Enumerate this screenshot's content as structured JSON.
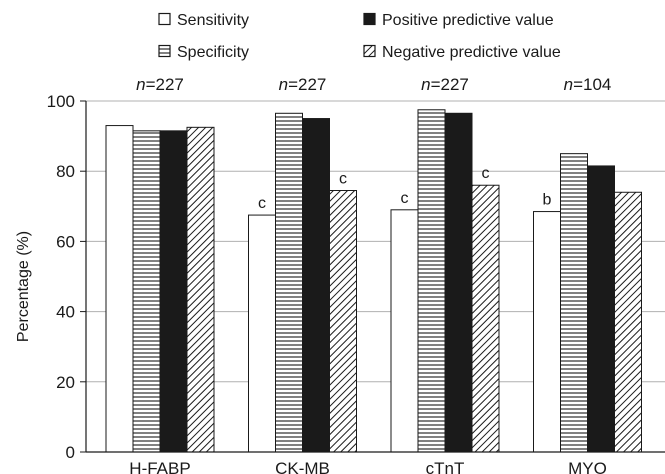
{
  "chart_data": {
    "type": "bar",
    "title": "",
    "xlabel": "",
    "ylabel": "Percentage (%)",
    "ylim": [
      0,
      100
    ],
    "yticks": [
      0,
      20,
      40,
      60,
      80,
      100
    ],
    "grid": true,
    "legend_placement": "top",
    "categories": [
      "H-FABP",
      "CK-MB",
      "cTnT",
      "MYO"
    ],
    "sample_sizes": [
      "n=227",
      "n=227",
      "n=227",
      "n=104"
    ],
    "series": [
      {
        "name": "Sensitivity",
        "pattern": "empty",
        "values": [
          93.0,
          67.5,
          69.0,
          68.5
        ]
      },
      {
        "name": "Specificity",
        "pattern": "horizontal-lines",
        "values": [
          91.5,
          96.5,
          97.5,
          85.0
        ]
      },
      {
        "name": "Positive predictive value",
        "pattern": "solid",
        "values": [
          91.5,
          95.0,
          96.5,
          81.5
        ]
      },
      {
        "name": "Negative predictive value",
        "pattern": "diagonal-hatch",
        "values": [
          92.5,
          74.5,
          76.0,
          74.0
        ]
      }
    ],
    "annotations": [
      {
        "category": "CK-MB",
        "series": "Sensitivity",
        "text": "c"
      },
      {
        "category": "CK-MB",
        "series": "Negative predictive value",
        "text": "c"
      },
      {
        "category": "cTnT",
        "series": "Sensitivity",
        "text": "c"
      },
      {
        "category": "cTnT",
        "series": "Negative predictive value",
        "text": "c"
      },
      {
        "category": "MYO",
        "series": "Sensitivity",
        "text": "b"
      }
    ],
    "colors": {
      "ink": "#1a1a1a",
      "grid": "#b0b0b0",
      "background": "#ffffff"
    }
  }
}
